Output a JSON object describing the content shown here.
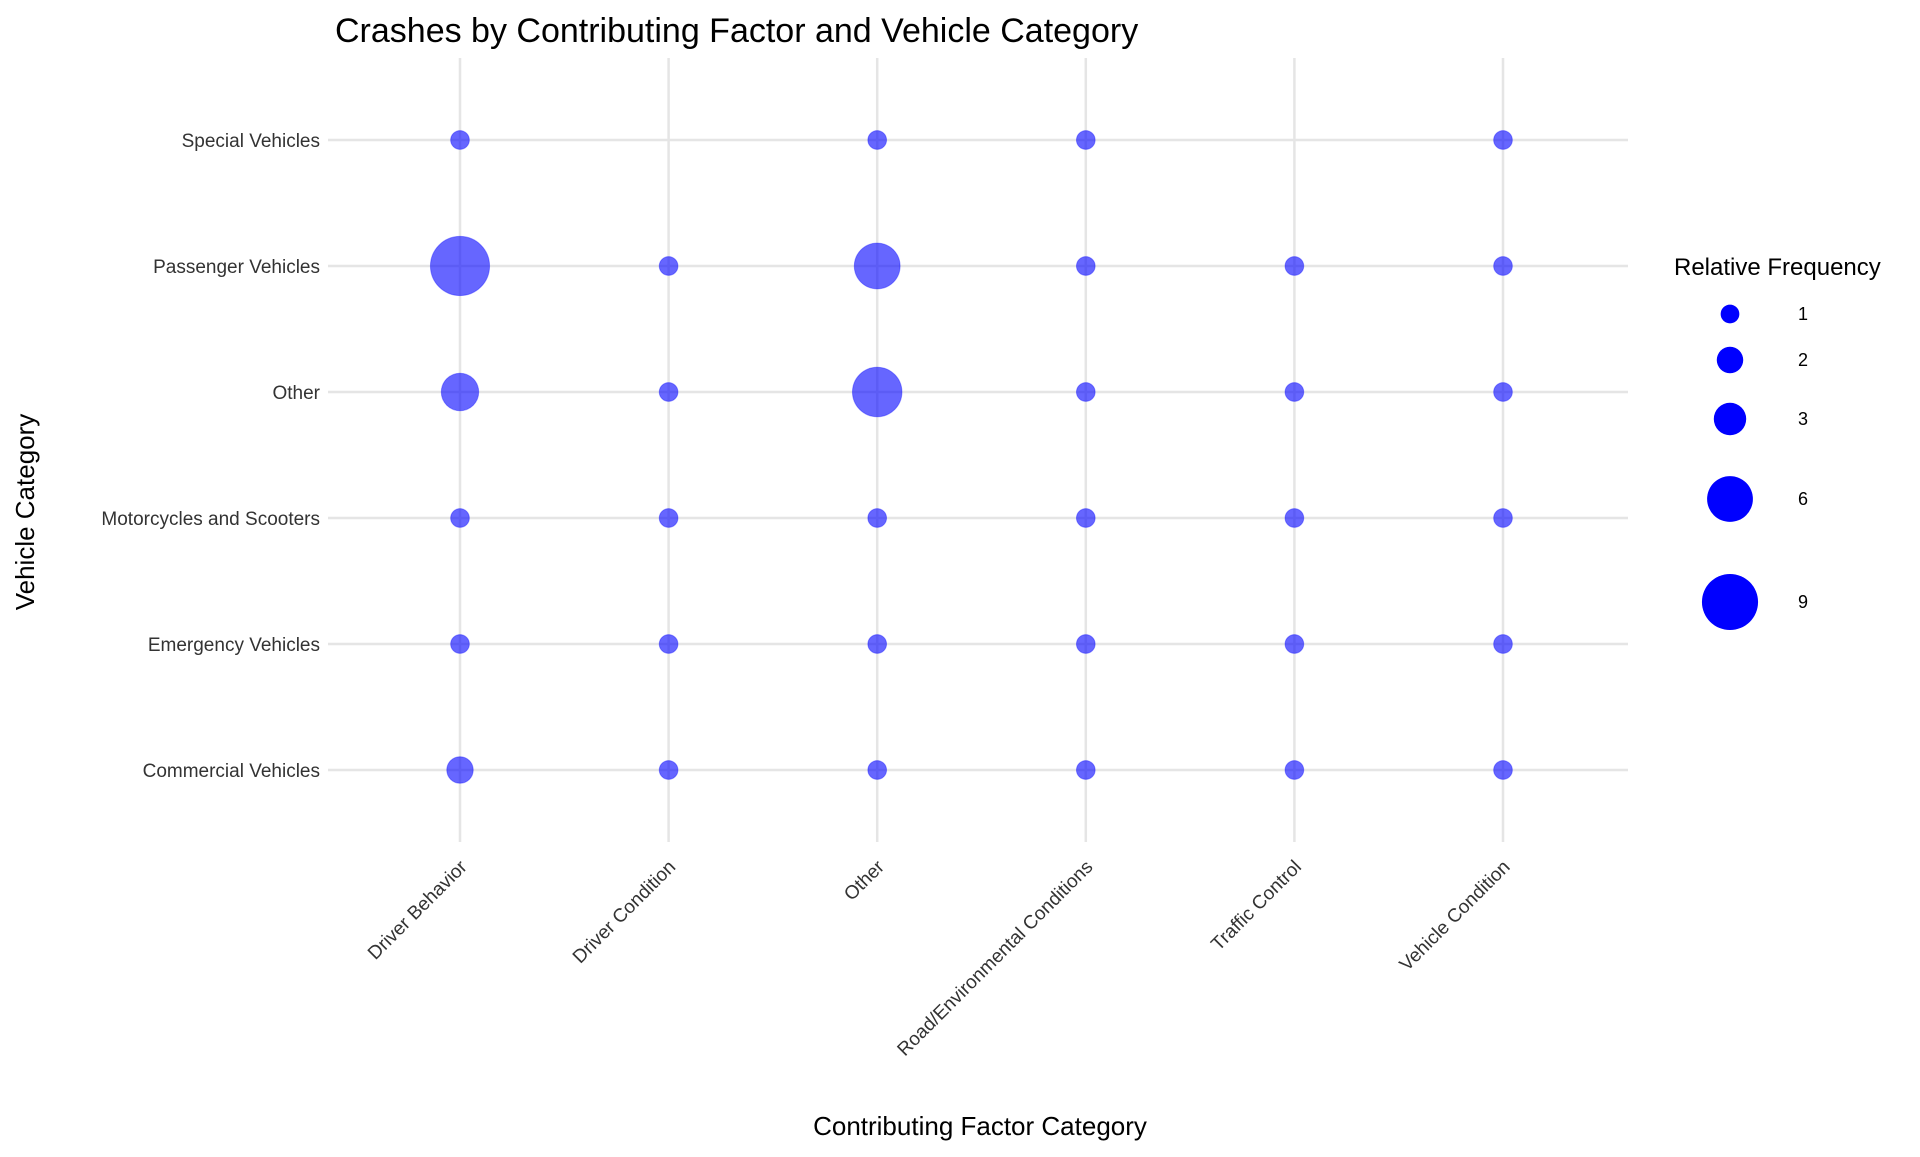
{
  "chart_data": {
    "type": "scatter",
    "title": "Crashes by Contributing Factor and Vehicle Category",
    "xlabel": "Contributing Factor Category",
    "ylabel": "Vehicle Category",
    "x_categories": [
      "Driver Behavior",
      "Driver Condition",
      "Other",
      "Road/Environmental Conditions",
      "Traffic Control",
      "Vehicle Condition"
    ],
    "y_categories": [
      "Commercial Vehicles",
      "Emergency Vehicles",
      "Motorcycles and Scooters",
      "Other",
      "Passenger Vehicles",
      "Special Vehicles"
    ],
    "points": [
      {
        "x": "Driver Behavior",
        "y": "Special Vehicles",
        "size": 1
      },
      {
        "x": "Other",
        "y": "Special Vehicles",
        "size": 1
      },
      {
        "x": "Road/Environmental Conditions",
        "y": "Special Vehicles",
        "size": 1
      },
      {
        "x": "Vehicle Condition",
        "y": "Special Vehicles",
        "size": 1
      },
      {
        "x": "Driver Behavior",
        "y": "Passenger Vehicles",
        "size": 10
      },
      {
        "x": "Driver Condition",
        "y": "Passenger Vehicles",
        "size": 1
      },
      {
        "x": "Other",
        "y": "Passenger Vehicles",
        "size": 6
      },
      {
        "x": "Road/Environmental Conditions",
        "y": "Passenger Vehicles",
        "size": 1
      },
      {
        "x": "Traffic Control",
        "y": "Passenger Vehicles",
        "size": 1
      },
      {
        "x": "Vehicle Condition",
        "y": "Passenger Vehicles",
        "size": 1
      },
      {
        "x": "Driver Behavior",
        "y": "Other",
        "size": 4
      },
      {
        "x": "Driver Condition",
        "y": "Other",
        "size": 1
      },
      {
        "x": "Other",
        "y": "Other",
        "size": 7
      },
      {
        "x": "Road/Environmental Conditions",
        "y": "Other",
        "size": 1
      },
      {
        "x": "Traffic Control",
        "y": "Other",
        "size": 1
      },
      {
        "x": "Vehicle Condition",
        "y": "Other",
        "size": 1
      },
      {
        "x": "Driver Behavior",
        "y": "Motorcycles and Scooters",
        "size": 1
      },
      {
        "x": "Driver Condition",
        "y": "Motorcycles and Scooters",
        "size": 1
      },
      {
        "x": "Other",
        "y": "Motorcycles and Scooters",
        "size": 1
      },
      {
        "x": "Road/Environmental Conditions",
        "y": "Motorcycles and Scooters",
        "size": 1
      },
      {
        "x": "Traffic Control",
        "y": "Motorcycles and Scooters",
        "size": 1
      },
      {
        "x": "Vehicle Condition",
        "y": "Motorcycles and Scooters",
        "size": 1
      },
      {
        "x": "Driver Behavior",
        "y": "Emergency Vehicles",
        "size": 1
      },
      {
        "x": "Driver Condition",
        "y": "Emergency Vehicles",
        "size": 1
      },
      {
        "x": "Other",
        "y": "Emergency Vehicles",
        "size": 1
      },
      {
        "x": "Road/Environmental Conditions",
        "y": "Emergency Vehicles",
        "size": 1
      },
      {
        "x": "Traffic Control",
        "y": "Emergency Vehicles",
        "size": 1
      },
      {
        "x": "Vehicle Condition",
        "y": "Emergency Vehicles",
        "size": 1
      },
      {
        "x": "Driver Behavior",
        "y": "Commercial Vehicles",
        "size": 2
      },
      {
        "x": "Driver Condition",
        "y": "Commercial Vehicles",
        "size": 1
      },
      {
        "x": "Other",
        "y": "Commercial Vehicles",
        "size": 1
      },
      {
        "x": "Road/Environmental Conditions",
        "y": "Commercial Vehicles",
        "size": 1
      },
      {
        "x": "Traffic Control",
        "y": "Commercial Vehicles",
        "size": 1
      },
      {
        "x": "Vehicle Condition",
        "y": "Commercial Vehicles",
        "size": 1
      }
    ],
    "legend": {
      "title": "Relative Frequency",
      "position": "right",
      "values": [
        1,
        2,
        3,
        6,
        9
      ]
    },
    "point_color": "#0000ff",
    "point_opacity": 0.6,
    "grid": true
  }
}
